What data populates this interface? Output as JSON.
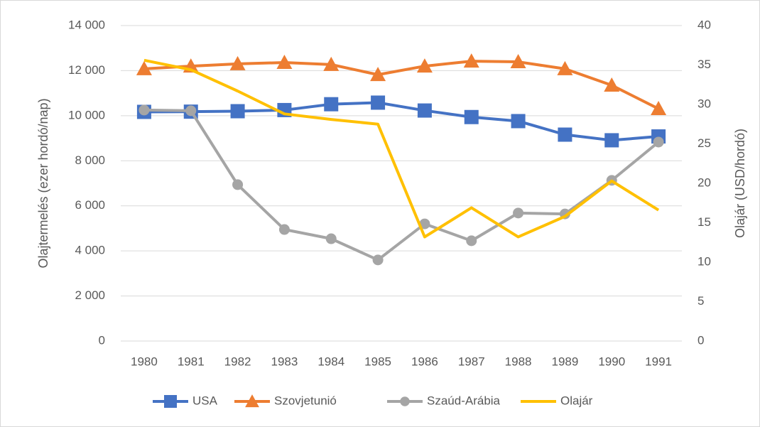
{
  "chart_data": {
    "type": "line",
    "categories": [
      "1980",
      "1981",
      "1982",
      "1983",
      "1984",
      "1985",
      "1986",
      "1987",
      "1988",
      "1989",
      "1990",
      "1991"
    ],
    "y_label": "Olajtermelés (ezer hordó/nap)",
    "y2_label": "Olajár (USD/hordó)",
    "ylim": [
      0,
      14000
    ],
    "yticks": [
      0,
      {
        "value": 2000,
        "label": "2 000"
      },
      {
        "value": 4000,
        "label": "4 000"
      },
      {
        "value": 6000,
        "label": "6 000"
      },
      {
        "value": 8000,
        "label": "8 000"
      },
      {
        "value": 10000,
        "label": "10 000"
      },
      {
        "value": 12000,
        "label": "12 000"
      },
      {
        "value": 14000,
        "label": "14 000"
      }
    ],
    "y2lim": [
      0,
      40
    ],
    "y2ticks": [
      0,
      5,
      10,
      15,
      20,
      25,
      30,
      35,
      40
    ],
    "grid": true,
    "legend": "bottom",
    "series": [
      {
        "name": "USA",
        "color": "#4472c4",
        "marker": "square",
        "values": [
          10170,
          10180,
          10200,
          10250,
          10510,
          10580,
          10230,
          9940,
          9760,
          9160,
          8910,
          9080
        ]
      },
      {
        "name": "Szovjetunió",
        "color": "#ed7d31",
        "marker": "triangle",
        "values": [
          12080,
          12200,
          12300,
          12360,
          12270,
          11820,
          12200,
          12420,
          12390,
          12080,
          11350,
          10310
        ]
      },
      {
        "name": "Szaúd-Arábia",
        "color": "#a5a5a5",
        "marker": "circle",
        "values": [
          10250,
          10220,
          6940,
          4950,
          4540,
          3600,
          5200,
          4450,
          5680,
          5640,
          7130,
          8830
        ]
      },
      {
        "name": "Olajár",
        "color": "#ffc000",
        "marker": "none",
        "axis": "y2",
        "values": [
          35.6,
          34.4,
          31.7,
          28.8,
          28.1,
          27.5,
          13.2,
          16.9,
          13.2,
          15.8,
          20.3,
          16.6
        ]
      }
    ]
  }
}
